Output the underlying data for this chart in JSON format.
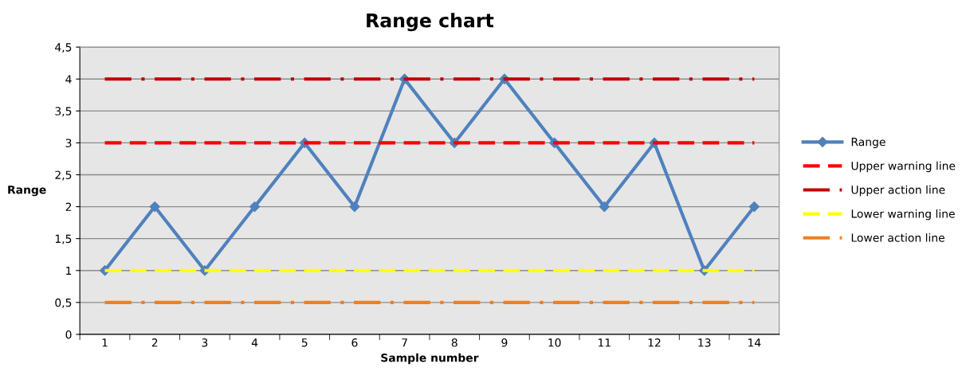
{
  "chart_data": {
    "type": "line",
    "title": "Range chart",
    "xlabel": "Sample number",
    "ylabel": "Range",
    "categories": [
      "1",
      "2",
      "3",
      "4",
      "5",
      "6",
      "7",
      "8",
      "9",
      "10",
      "11",
      "12",
      "13",
      "14"
    ],
    "series": [
      {
        "name": "Range",
        "color": "#4f81bd",
        "marker": "diamond",
        "line_style": "solid",
        "values": [
          1,
          2,
          1,
          2,
          3,
          2,
          4,
          3,
          4,
          3,
          2,
          3,
          1,
          2
        ]
      },
      {
        "name": "Upper warning line",
        "color": "#ff0000",
        "marker": "none",
        "line_style": "dashed",
        "values": [
          3,
          3,
          3,
          3,
          3,
          3,
          3,
          3,
          3,
          3,
          3,
          3,
          3,
          3
        ]
      },
      {
        "name": "Upper action line",
        "color": "#c00000",
        "marker": "none",
        "line_style": "dashdot",
        "values": [
          4,
          4,
          4,
          4,
          4,
          4,
          4,
          4,
          4,
          4,
          4,
          4,
          4,
          4
        ]
      },
      {
        "name": "Lower warning line",
        "color": "#ffff00",
        "marker": "none",
        "line_style": "dashed",
        "values": [
          1,
          1,
          1,
          1,
          1,
          1,
          1,
          1,
          1,
          1,
          1,
          1,
          1,
          1
        ]
      },
      {
        "name": "Lower action line",
        "color": "#f07f1f",
        "marker": "none",
        "line_style": "dashdot",
        "values": [
          0.5,
          0.5,
          0.5,
          0.5,
          0.5,
          0.5,
          0.5,
          0.5,
          0.5,
          0.5,
          0.5,
          0.5,
          0.5,
          0.5
        ]
      }
    ],
    "ylim": [
      0,
      4.5
    ],
    "yticks": [
      0,
      {
        "value": 0.5,
        "label": "0,5"
      },
      1,
      {
        "value": 1.5,
        "label": "1,5"
      },
      2,
      {
        "value": 2.5,
        "label": "2,5"
      },
      3,
      {
        "value": 3.5,
        "label": "3,5"
      },
      4,
      {
        "value": 4.5,
        "label": "4,5"
      }
    ],
    "grid": "y",
    "legend": "right"
  }
}
